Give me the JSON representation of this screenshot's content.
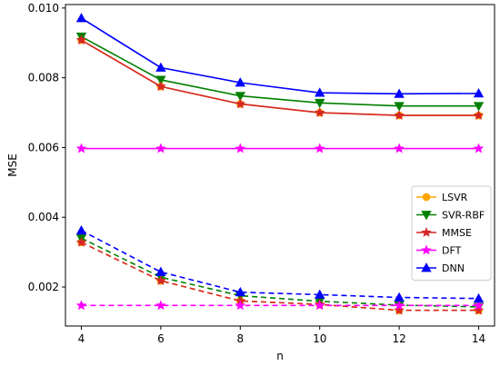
{
  "chart_data": {
    "type": "line",
    "xlabel": "n",
    "ylabel": "MSE",
    "xlim": [
      3.6,
      14.4
    ],
    "ylim": [
      0.00088,
      0.0101
    ],
    "x_ticks": [
      4,
      6,
      8,
      10,
      12,
      14
    ],
    "x_tick_labels": [
      "4",
      "6",
      "8",
      "10",
      "12",
      "14"
    ],
    "y_ticks": [
      0.002,
      0.004,
      0.006,
      0.008,
      0.01
    ],
    "y_tick_labels": [
      "0.002",
      "0.004",
      "0.006",
      "0.008",
      "0.010"
    ],
    "grid": false,
    "legend_position": "center-right",
    "x": [
      4,
      6,
      8,
      10,
      12,
      14
    ],
    "series": [
      {
        "name": "LSVR",
        "color": "#ffa500",
        "marker": "circle",
        "style": "solid",
        "in_legend": true,
        "values": [
          0.00908,
          0.00775,
          0.00725,
          0.007,
          0.00692,
          0.00692
        ]
      },
      {
        "name": "SVR-RBF",
        "color": "#008000",
        "marker": "triangle-down",
        "style": "solid",
        "in_legend": true,
        "values": [
          0.00918,
          0.00794,
          0.00748,
          0.00728,
          0.00719,
          0.00719
        ]
      },
      {
        "name": "MMSE",
        "color": "#d62728",
        "marker": "star",
        "style": "solid",
        "in_legend": true,
        "values": [
          0.00908,
          0.00775,
          0.00725,
          0.007,
          0.00692,
          0.00692
        ]
      },
      {
        "name": "DFT",
        "color": "#ff00ff",
        "marker": "star",
        "style": "solid",
        "in_legend": true,
        "values": [
          0.00597,
          0.00597,
          0.00597,
          0.00597,
          0.00597,
          0.00597
        ]
      },
      {
        "name": "DNN",
        "color": "#0000ff",
        "marker": "triangle-up",
        "style": "solid",
        "in_legend": true,
        "values": [
          0.00971,
          0.00829,
          0.00786,
          0.00757,
          0.00754,
          0.00755
        ]
      },
      {
        "name": "",
        "color": "#ffa500",
        "marker": "circle",
        "style": "dashed",
        "in_legend": false,
        "values": [
          0.00328,
          0.00218,
          0.0016,
          0.0015,
          0.00133,
          0.00133
        ]
      },
      {
        "name": "",
        "color": "#008000",
        "marker": "triangle-down",
        "style": "dashed",
        "in_legend": false,
        "values": [
          0.0034,
          0.00228,
          0.00175,
          0.00159,
          0.00148,
          0.00143
        ]
      },
      {
        "name": "",
        "color": "#d62728",
        "marker": "star",
        "style": "dashed",
        "in_legend": false,
        "values": [
          0.00328,
          0.00218,
          0.0016,
          0.0015,
          0.00133,
          0.00133
        ]
      },
      {
        "name": "",
        "color": "#ff00ff",
        "marker": "star",
        "style": "dashed",
        "in_legend": false,
        "values": [
          0.00147,
          0.00147,
          0.00147,
          0.00147,
          0.00147,
          0.00147
        ]
      },
      {
        "name": "",
        "color": "#0000ff",
        "marker": "triangle-up",
        "style": "dashed",
        "in_legend": false,
        "values": [
          0.00362,
          0.00243,
          0.00185,
          0.00178,
          0.0017,
          0.00167
        ]
      }
    ]
  }
}
